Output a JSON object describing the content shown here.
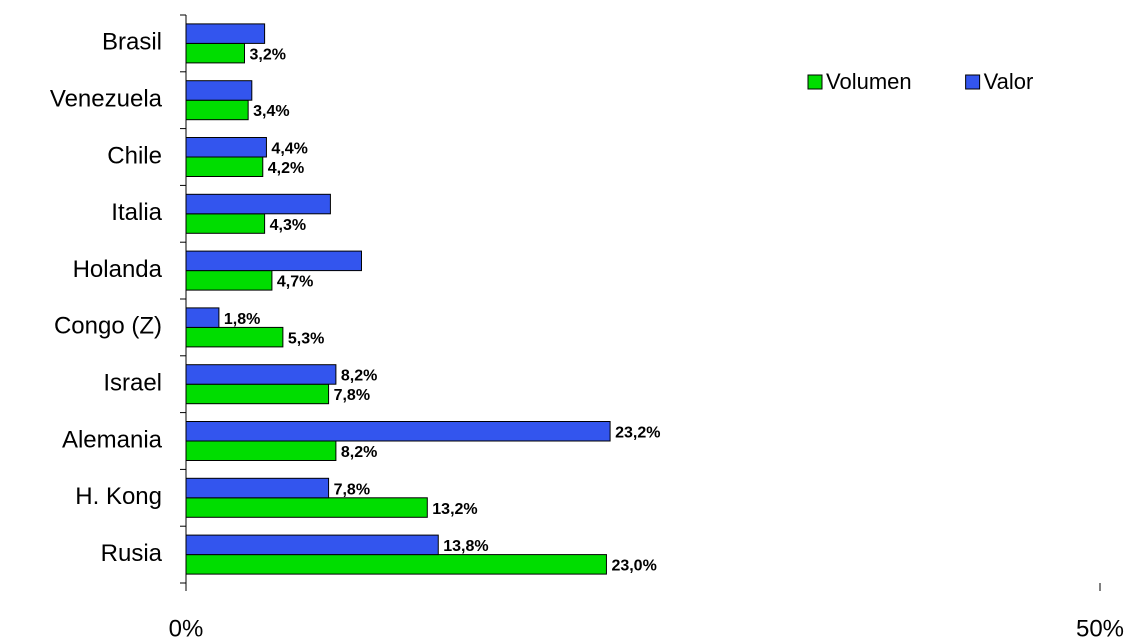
{
  "chart_data": {
    "type": "barh",
    "categories": [
      "Brasil",
      "Venezuela",
      "Chile",
      "Italia",
      "Holanda",
      "Congo (Z)",
      "Israel",
      "Alemania",
      "H. Kong",
      "Rusia"
    ],
    "series": [
      {
        "name": "Volumen",
        "color": "#00dd00",
        "values": [
          3.2,
          3.4,
          4.2,
          4.3,
          4.7,
          5.3,
          7.8,
          8.2,
          13.2,
          23.0
        ],
        "value_labels": [
          "3,2%",
          "3,4%",
          "4,2%",
          "4,3%",
          "4,7%",
          "5,3%",
          "7,8%",
          "8,2%",
          "13,2%",
          "23,0%"
        ]
      },
      {
        "name": "Valor",
        "color": "#3355ee",
        "values": [
          4.3,
          3.6,
          4.4,
          7.9,
          9.6,
          1.8,
          8.2,
          23.2,
          7.8,
          13.8
        ],
        "value_labels": [
          null,
          null,
          "4,4%",
          null,
          null,
          "1,8%",
          "8,2%",
          "23,2%",
          "7,8%",
          "13,8%"
        ]
      }
    ],
    "xlim": [
      0,
      50
    ],
    "xticks": [
      {
        "value": 0,
        "label": "0%"
      },
      {
        "value": 50,
        "label": "50%"
      }
    ],
    "legend": "top-right"
  }
}
